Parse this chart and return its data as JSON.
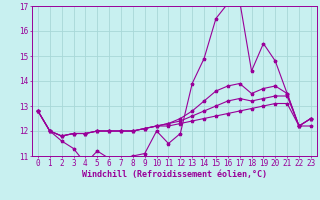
{
  "background_color": "#c8f0f0",
  "grid_color": "#a8d8d8",
  "line_color": "#990099",
  "xlabel": "Windchill (Refroidissement éolien,°C)",
  "xlabel_fontsize": 6.0,
  "tick_fontsize": 5.5,
  "xlim": [
    -0.5,
    23.5
  ],
  "ylim": [
    11,
    17
  ],
  "yticks": [
    11,
    12,
    13,
    14,
    15,
    16,
    17
  ],
  "xticks": [
    0,
    1,
    2,
    3,
    4,
    5,
    6,
    7,
    8,
    9,
    10,
    11,
    12,
    13,
    14,
    15,
    16,
    17,
    18,
    19,
    20,
    21,
    22,
    23
  ],
  "series": [
    [
      12.8,
      12.0,
      11.6,
      11.3,
      10.7,
      11.2,
      10.9,
      10.9,
      11.0,
      11.1,
      12.0,
      11.5,
      11.9,
      13.9,
      14.9,
      16.5,
      17.1,
      17.2,
      14.4,
      15.5,
      14.8,
      13.5,
      12.2,
      12.2
    ],
    [
      12.8,
      12.0,
      11.8,
      11.9,
      11.9,
      12.0,
      12.0,
      12.0,
      12.0,
      12.1,
      12.2,
      12.2,
      12.3,
      12.4,
      12.5,
      12.6,
      12.7,
      12.8,
      12.9,
      13.0,
      13.1,
      13.1,
      12.2,
      12.5
    ],
    [
      12.8,
      12.0,
      11.8,
      11.9,
      11.9,
      12.0,
      12.0,
      12.0,
      12.0,
      12.1,
      12.2,
      12.3,
      12.4,
      12.6,
      12.8,
      13.0,
      13.2,
      13.3,
      13.2,
      13.3,
      13.4,
      13.4,
      12.2,
      12.5
    ],
    [
      12.8,
      12.0,
      11.8,
      11.9,
      11.9,
      12.0,
      12.0,
      12.0,
      12.0,
      12.1,
      12.2,
      12.3,
      12.5,
      12.8,
      13.2,
      13.6,
      13.8,
      13.9,
      13.5,
      13.7,
      13.8,
      13.5,
      12.2,
      12.5
    ]
  ]
}
